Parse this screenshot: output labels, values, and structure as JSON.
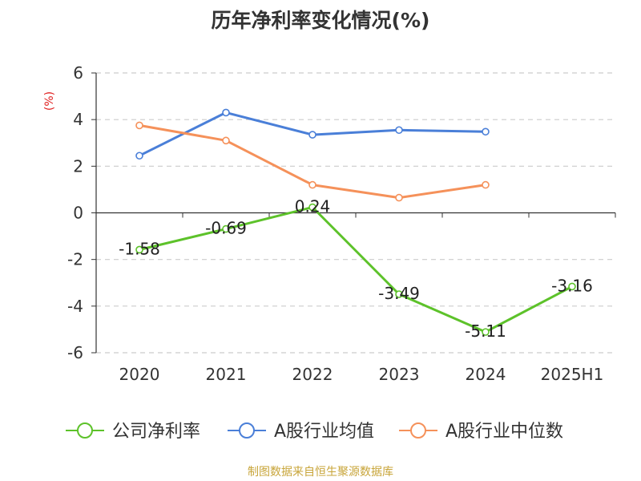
{
  "chart_data": {
    "type": "line",
    "title": "历年净利率变化情况(%)",
    "ylabel": "(%)",
    "xlabel": "",
    "categories": [
      "2020",
      "2021",
      "2022",
      "2023",
      "2024",
      "2025H1"
    ],
    "ylim": [
      -6,
      6
    ],
    "yticks": [
      6,
      4,
      2,
      0,
      -2,
      -4,
      -6
    ],
    "grid": true,
    "legend_position": "bottom",
    "series": [
      {
        "name": "公司净利率",
        "color": "#5dc22a",
        "values": [
          -1.58,
          -0.69,
          0.24,
          -3.49,
          -5.11,
          -3.16
        ],
        "labels": [
          "-1.58",
          "-0.69",
          "0.24",
          "-3.49",
          "-5.11",
          "-3.16"
        ]
      },
      {
        "name": "A股行业均值",
        "color": "#4a7fd8",
        "values": [
          2.45,
          4.3,
          3.35,
          3.55,
          3.48,
          null
        ]
      },
      {
        "name": "A股行业中位数",
        "color": "#f5915a",
        "values": [
          3.75,
          3.1,
          1.2,
          0.65,
          1.2,
          null
        ]
      }
    ]
  },
  "footer": {
    "source": "制图数据来自恒生聚源数据库"
  },
  "colors": {
    "ylabel": "#e02020",
    "axis": "#333333",
    "grid": "#cccccc",
    "source": "#c8a53a"
  }
}
